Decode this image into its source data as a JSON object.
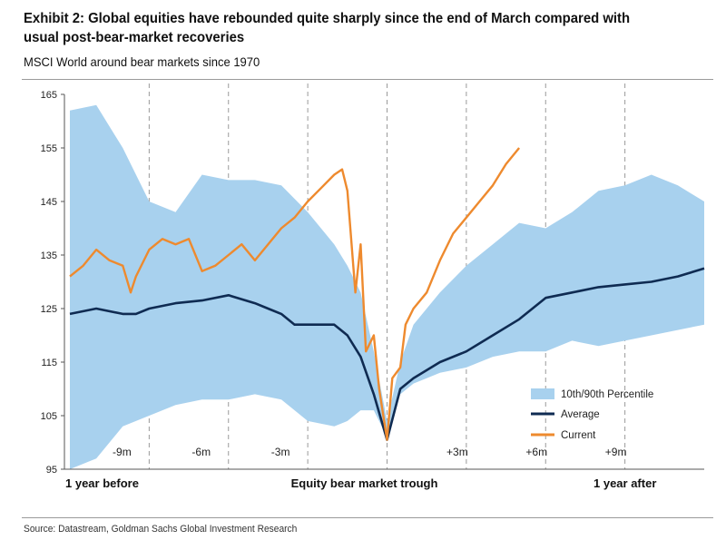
{
  "header": {
    "title": "Exhibit 2: Global equities have rebounded quite sharply since the end of March compared with usual post-bear-market recoveries",
    "subtitle": "MSCI World around bear markets since 1970"
  },
  "footer": {
    "source": "Source: Datastream, Goldman Sachs Global Investment Research"
  },
  "colors": {
    "band": "#a8d1ee",
    "average": "#0f2b52",
    "current": "#ee8a2e",
    "gridline": "#9a9a9a"
  },
  "chart_data": {
    "type": "line",
    "title": "Exhibit 2: Global equities have rebounded quite sharply since the end of March compared with usual post-bear-market recoveries",
    "subtitle": "MSCI World around bear markets since 1970",
    "ylim": [
      95,
      165
    ],
    "yticks": [
      "165",
      "155",
      "145",
      "135",
      "125",
      "115",
      "105",
      "95"
    ],
    "xlim": [
      -12,
      12
    ],
    "x_unit": "months relative to equity bear market trough",
    "x_categories": [
      "1 year before",
      "Equity bear market trough",
      "1 year after"
    ],
    "period_labels": [
      {
        "x": -9,
        "label": "-9m"
      },
      {
        "x": -6,
        "label": "-6m"
      },
      {
        "x": -3,
        "label": "-3m"
      },
      {
        "x": 3,
        "label": "+3m"
      },
      {
        "x": 6,
        "label": "+6m"
      },
      {
        "x": 9,
        "label": "+9m"
      }
    ],
    "grid": "dashed vertical lines every 3 months",
    "legend_placement": "bottom-right",
    "legend": [
      "10th/90th Percentile",
      "Average",
      "Current"
    ],
    "series": [
      {
        "name": "10th/90th Percentile",
        "kind": "band",
        "x": [
          -12,
          -11,
          -10,
          -9,
          -8,
          -7,
          -6,
          -5,
          -4,
          -3,
          -2,
          -1.5,
          -1,
          -0.5,
          0,
          0.5,
          1,
          1.5,
          2,
          3,
          4,
          5,
          6,
          7,
          8,
          9,
          10,
          11,
          12
        ],
        "upper": [
          162,
          163,
          155,
          145,
          143,
          150,
          149,
          149,
          148,
          143,
          137,
          133,
          128,
          117,
          104,
          115,
          122,
          125,
          128,
          133,
          137,
          141,
          140,
          143,
          147,
          148,
          150,
          148,
          145
        ],
        "lower": [
          95,
          97,
          103,
          105,
          107,
          108,
          108,
          109,
          108,
          104,
          103,
          104,
          106,
          106,
          101,
          109,
          111,
          112,
          113,
          114,
          116,
          117,
          117,
          119,
          118,
          119,
          120,
          121,
          122
        ]
      },
      {
        "name": "Average",
        "kind": "line",
        "x": [
          -12,
          -11,
          -10,
          -9.5,
          -9,
          -8,
          -7,
          -6,
          -5,
          -4.5,
          -4,
          -3.5,
          -3,
          -2,
          -1.5,
          -1,
          -0.5,
          0,
          0.5,
          1,
          1.5,
          2,
          3,
          4,
          5,
          6,
          7,
          8,
          9,
          10,
          11,
          12
        ],
        "y": [
          124,
          125,
          124,
          124,
          125,
          126,
          126.5,
          127.5,
          126,
          125,
          124,
          122,
          122,
          122,
          120,
          116,
          109,
          100.5,
          110,
          112,
          113.5,
          115,
          117,
          120,
          123,
          127,
          128,
          129,
          129.5,
          130,
          131,
          132.5
        ]
      },
      {
        "name": "Current",
        "kind": "line",
        "x": [
          -12,
          -11.5,
          -11,
          -10.5,
          -10,
          -9.7,
          -9.5,
          -9,
          -8.5,
          -8,
          -7.5,
          -7,
          -6.5,
          -6,
          -5.5,
          -5,
          -4.5,
          -4,
          -3.5,
          -3,
          -2.5,
          -2,
          -1.7,
          -1.5,
          -1.2,
          -1,
          -0.8,
          -0.5,
          -0.3,
          0,
          0.2,
          0.5,
          0.7,
          1,
          1.5,
          2,
          2.5,
          3,
          3.5,
          4,
          4.5,
          5
        ],
        "y": [
          131,
          133,
          136,
          134,
          133,
          128,
          131,
          136,
          138,
          137,
          138,
          132,
          133,
          135,
          137,
          134,
          137,
          140,
          142,
          145,
          147.5,
          150,
          151,
          147,
          128,
          137,
          117,
          120,
          110,
          100.5,
          112,
          114,
          122,
          125,
          128,
          134,
          139,
          142,
          145,
          148,
          152,
          155
        ]
      }
    ]
  }
}
